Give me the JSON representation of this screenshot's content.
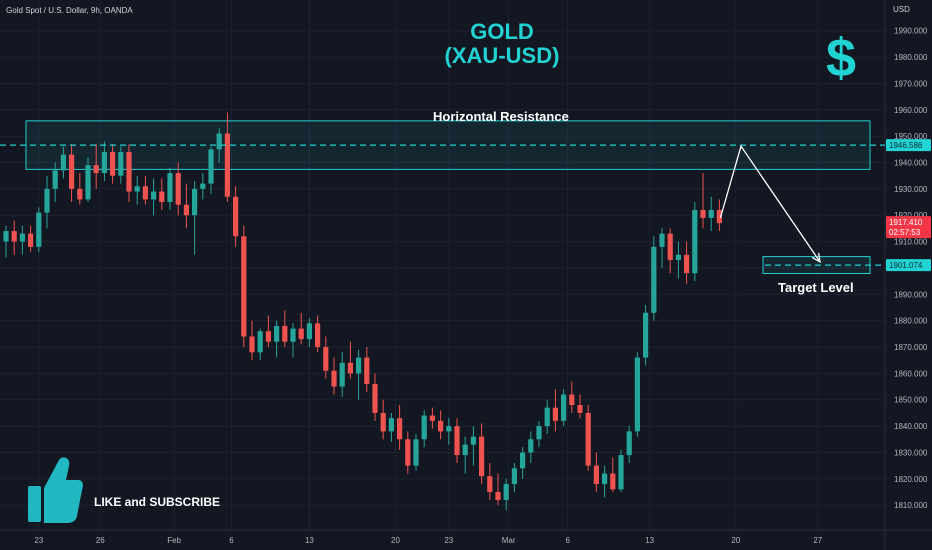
{
  "header": {
    "symbol_line": "Gold Spot / U.S. Dollar, 9h, OANDA",
    "currency": "USD"
  },
  "title": {
    "line1": "GOLD",
    "line2": "(XAU-USD)"
  },
  "dollar_icon_glyph": "$",
  "annotations": {
    "resistance_label": "Horizontal Resistance",
    "target_label": "Target Level",
    "cta": "LIKE and SUBSCRIBE"
  },
  "colors": {
    "bull": "#26a69a",
    "bear": "#ef5350",
    "accent": "#22d3d3",
    "background": "#131722",
    "text": "#d1d4dc",
    "price_tag": "#f23645"
  },
  "chart_data": {
    "type": "candlestick",
    "ylim": [
      1804,
      1999
    ],
    "y_ticks": [
      1810,
      1820,
      1830,
      1840,
      1850,
      1860,
      1870,
      1880,
      1890,
      1900,
      1910,
      1920,
      1930,
      1940,
      1950,
      1960,
      1970,
      1980,
      1990
    ],
    "x_ticks": [
      {
        "label": "23",
        "bar": 4
      },
      {
        "label": "26",
        "bar": 11.5
      },
      {
        "label": "Feb",
        "bar": 20.5
      },
      {
        "label": "6",
        "bar": 27.5
      },
      {
        "label": "13",
        "bar": 37
      },
      {
        "label": "20",
        "bar": 47.5
      },
      {
        "label": "23",
        "bar": 54
      },
      {
        "label": "Mar",
        "bar": 61.3
      },
      {
        "label": "6",
        "bar": 68.5
      },
      {
        "label": "13",
        "bar": 78.5
      },
      {
        "label": "20",
        "bar": 89
      },
      {
        "label": "27",
        "bar": 99
      }
    ],
    "candles": [
      [
        1910,
        1916,
        1904,
        1914
      ],
      [
        1914,
        1918,
        1905,
        1910
      ],
      [
        1910,
        1916,
        1905,
        1913
      ],
      [
        1913,
        1916,
        1906,
        1908
      ],
      [
        1908,
        1923,
        1906,
        1921
      ],
      [
        1921,
        1935,
        1915,
        1930
      ],
      [
        1930,
        1940,
        1925,
        1937
      ],
      [
        1937,
        1946,
        1934,
        1943
      ],
      [
        1943,
        1947,
        1925,
        1930
      ],
      [
        1930,
        1936,
        1924,
        1926
      ],
      [
        1926,
        1942,
        1925,
        1939
      ],
      [
        1939,
        1947,
        1930,
        1936
      ],
      [
        1936,
        1948,
        1933,
        1944
      ],
      [
        1944,
        1947,
        1932,
        1935
      ],
      [
        1935,
        1946,
        1932,
        1944
      ],
      [
        1944,
        1947,
        1925,
        1929
      ],
      [
        1929,
        1935,
        1924,
        1931
      ],
      [
        1931,
        1935,
        1924,
        1926
      ],
      [
        1926,
        1934,
        1920,
        1929
      ],
      [
        1929,
        1934,
        1922,
        1925
      ],
      [
        1925,
        1938,
        1922,
        1936
      ],
      [
        1936,
        1940,
        1920,
        1924
      ],
      [
        1924,
        1932,
        1915,
        1920
      ],
      [
        1920,
        1933,
        1905,
        1930
      ],
      [
        1930,
        1936,
        1926,
        1932
      ],
      [
        1932,
        1946,
        1928,
        1945
      ],
      [
        1945,
        1953,
        1940,
        1951
      ],
      [
        1951,
        1959,
        1925,
        1927
      ],
      [
        1927,
        1931,
        1908,
        1912
      ],
      [
        1912,
        1916,
        1870,
        1874
      ],
      [
        1874,
        1880,
        1865,
        1868
      ],
      [
        1868,
        1877,
        1865,
        1876
      ],
      [
        1876,
        1882,
        1870,
        1872
      ],
      [
        1872,
        1880,
        1866,
        1878
      ],
      [
        1878,
        1884,
        1870,
        1872
      ],
      [
        1872,
        1879,
        1866,
        1877
      ],
      [
        1877,
        1883,
        1871,
        1873
      ],
      [
        1873,
        1881,
        1870,
        1879
      ],
      [
        1879,
        1882,
        1868,
        1870
      ],
      [
        1870,
        1874,
        1858,
        1861
      ],
      [
        1861,
        1866,
        1852,
        1855
      ],
      [
        1855,
        1868,
        1851,
        1864
      ],
      [
        1864,
        1872,
        1858,
        1860
      ],
      [
        1860,
        1869,
        1850,
        1866
      ],
      [
        1866,
        1870,
        1853,
        1856
      ],
      [
        1856,
        1860,
        1842,
        1845
      ],
      [
        1845,
        1850,
        1835,
        1838
      ],
      [
        1838,
        1845,
        1834,
        1843
      ],
      [
        1843,
        1848,
        1831,
        1835
      ],
      [
        1835,
        1838,
        1822,
        1825
      ],
      [
        1825,
        1837,
        1823,
        1835
      ],
      [
        1835,
        1846,
        1832,
        1844
      ],
      [
        1844,
        1847,
        1839,
        1842
      ],
      [
        1842,
        1846,
        1835,
        1838
      ],
      [
        1838,
        1843,
        1833,
        1840
      ],
      [
        1840,
        1843,
        1826,
        1829
      ],
      [
        1829,
        1836,
        1822,
        1833
      ],
      [
        1833,
        1840,
        1825,
        1836
      ],
      [
        1836,
        1841,
        1818,
        1821
      ],
      [
        1821,
        1826,
        1812,
        1815
      ],
      [
        1815,
        1822,
        1810,
        1812
      ],
      [
        1812,
        1820,
        1808,
        1818
      ],
      [
        1818,
        1826,
        1815,
        1824
      ],
      [
        1824,
        1832,
        1820,
        1830
      ],
      [
        1830,
        1838,
        1826,
        1835
      ],
      [
        1835,
        1842,
        1832,
        1840
      ],
      [
        1840,
        1850,
        1837,
        1847
      ],
      [
        1847,
        1854,
        1838,
        1842
      ],
      [
        1842,
        1854,
        1840,
        1852
      ],
      [
        1852,
        1857,
        1845,
        1848
      ],
      [
        1848,
        1852,
        1843,
        1845
      ],
      [
        1845,
        1848,
        1823,
        1825
      ],
      [
        1825,
        1830,
        1815,
        1818
      ],
      [
        1818,
        1825,
        1813,
        1822
      ],
      [
        1822,
        1828,
        1815,
        1816
      ],
      [
        1816,
        1831,
        1815,
        1829
      ],
      [
        1829,
        1840,
        1826,
        1838
      ],
      [
        1838,
        1868,
        1836,
        1866
      ],
      [
        1866,
        1886,
        1863,
        1883
      ],
      [
        1883,
        1912,
        1880,
        1908
      ],
      [
        1908,
        1915,
        1900,
        1913
      ],
      [
        1913,
        1915,
        1898,
        1903
      ],
      [
        1903,
        1910,
        1896,
        1905
      ],
      [
        1905,
        1910,
        1894,
        1898
      ],
      [
        1898,
        1925,
        1895,
        1922
      ],
      [
        1922,
        1936,
        1915,
        1919
      ],
      [
        1919,
        1927,
        1914,
        1922
      ],
      [
        1922,
        1926,
        1914,
        1917
      ]
    ],
    "resistance_zone": [
      1937.4,
      1955.8
    ],
    "resistance_level": 1946.586,
    "target_zone": [
      1897.9,
      1904.3
    ],
    "target_level": 1901.074,
    "last_price": 1917.41,
    "countdown": "02:57:53",
    "price_tags": [
      "1946.586",
      "1917.410",
      "1901.074"
    ]
  }
}
